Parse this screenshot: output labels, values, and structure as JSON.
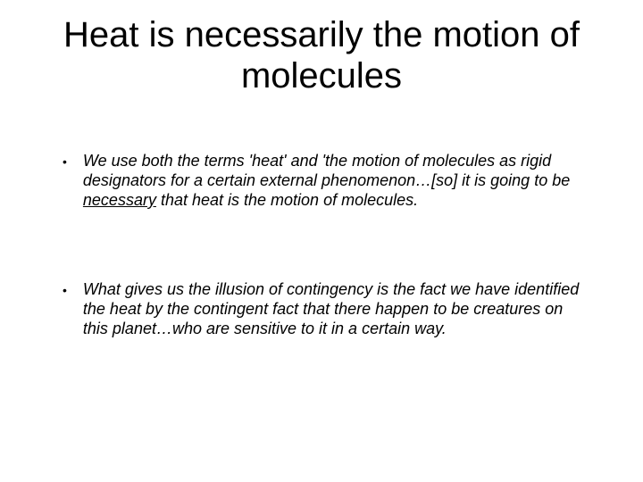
{
  "background_color": "#ffffff",
  "text_color": "#000000",
  "title": "Heat is necessarily the motion of molecules",
  "title_fontsize": 40,
  "body_fontsize": 18,
  "bullets": [
    {
      "pre": "We use both the terms 'heat' and 'the motion of molecules as rigid designators for a certain external phenomenon…[so] it is going to be ",
      "underlined": "necessary",
      "post": " that heat is the motion of molecules."
    },
    {
      "pre": "What gives us the illusion of contingency is the fact we have identified the heat by the contingent fact that there happen to be creatures on this planet…who are sensitive to it in a certain way.",
      "underlined": "",
      "post": ""
    }
  ],
  "bullet_marker": "•"
}
